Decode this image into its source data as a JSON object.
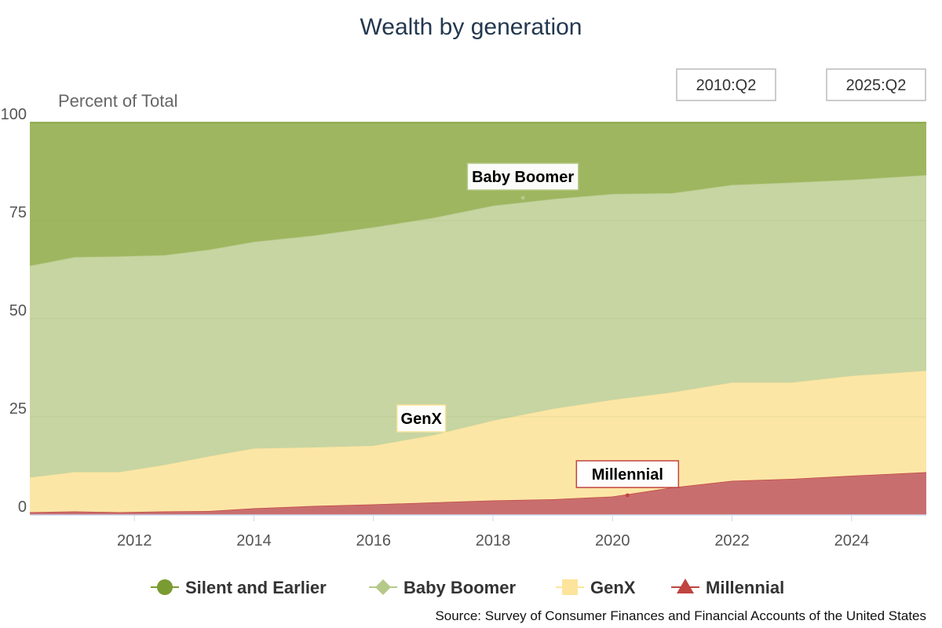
{
  "colors": {
    "silent": "#9eb65f",
    "boomer": "#c7d5a2",
    "genx": "#fce6a6",
    "millennial": "#c96e6e",
    "silent_marker": "#7a9b32",
    "boomer_marker": "#b5c98a",
    "genx_marker": "#fde49c",
    "millennial_marker": "#c0443f"
  },
  "chart_data": {
    "type": "area",
    "stacked": true,
    "title": "Wealth by generation",
    "ylabel": "Percent of Total",
    "ylim": [
      0,
      100
    ],
    "xlim": [
      2010.25,
      2025.25
    ],
    "yticks": [
      0,
      25,
      50,
      75,
      100
    ],
    "xticks": [
      2012,
      2014,
      2016,
      2018,
      2020,
      2022,
      2024
    ],
    "grid": true,
    "legend_position": "bottom",
    "range_selector": [
      "2010:Q2",
      "2025:Q2"
    ],
    "x": [
      2010.25,
      2011.0,
      2011.75,
      2012.5,
      2013.25,
      2014.0,
      2015.0,
      2016.0,
      2017.0,
      2018.0,
      2019.0,
      2020.0,
      2021.0,
      2022.0,
      2023.0,
      2024.0,
      2025.25
    ],
    "series": [
      {
        "name": "Millennial",
        "key": "millennial",
        "marker": "triangle",
        "values": [
          0.7,
          0.9,
          0.7,
          0.9,
          1.0,
          1.7,
          2.3,
          2.7,
          3.2,
          3.7,
          4.0,
          4.7,
          7.0,
          8.7,
          9.2,
          10.0,
          10.9
        ]
      },
      {
        "name": "GenX",
        "key": "genx",
        "marker": "square",
        "values": [
          8.8,
          10.0,
          10.2,
          11.8,
          13.9,
          15.2,
          14.9,
          14.9,
          17.1,
          20.3,
          23.0,
          24.6,
          24.2,
          25.0,
          24.5,
          25.4,
          25.8
        ]
      },
      {
        "name": "Baby Boomer",
        "key": "boomer",
        "marker": "diamond",
        "values": [
          54.0,
          54.8,
          55.0,
          53.5,
          52.7,
          52.7,
          54.0,
          55.7,
          55.4,
          54.8,
          53.5,
          52.5,
          50.8,
          50.4,
          51.0,
          50.0,
          49.9
        ]
      },
      {
        "name": "Silent and Earlier",
        "key": "silent",
        "marker": "circle",
        "values": [
          36.5,
          34.3,
          34.1,
          33.8,
          32.4,
          30.4,
          28.8,
          26.7,
          24.3,
          21.2,
          19.5,
          18.2,
          18.0,
          15.9,
          15.3,
          14.6,
          13.4
        ]
      }
    ],
    "annotations": [
      {
        "text": "Baby Boomer",
        "x": 2018.5,
        "y": 80.8
      },
      {
        "text": "GenX",
        "x": 2016.8,
        "y": 19.2
      },
      {
        "text": "Millennial",
        "x": 2020.25,
        "y": 5.0
      }
    ],
    "source": "Source: Survey of Consumer Finances and Financial Accounts of the United States"
  }
}
